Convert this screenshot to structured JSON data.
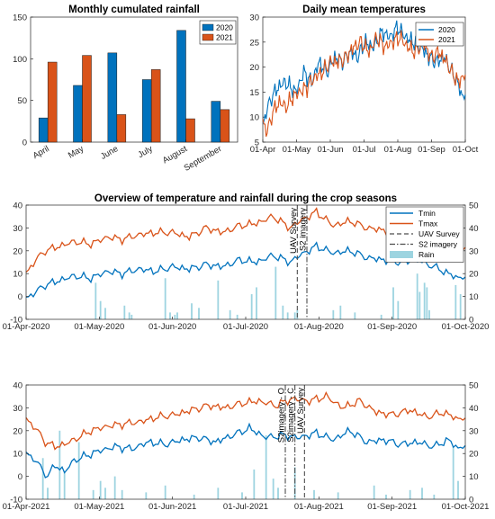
{
  "colors": {
    "c2020": "#0072BD",
    "c2021": "#D95319",
    "tmin": "#0072BD",
    "tmax": "#D95319",
    "rain": "#9DD4E0",
    "axis": "#262626"
  },
  "chart_data": [
    {
      "id": "rainfall",
      "type": "bar",
      "title": "Monthly cumulated rainfall",
      "categories": [
        "April",
        "May",
        "June",
        "July",
        "August",
        "September"
      ],
      "series": [
        {
          "name": "2020",
          "values": [
            29,
            68,
            107,
            75,
            134,
            49
          ]
        },
        {
          "name": "2021",
          "values": [
            96,
            104,
            33,
            87,
            28,
            39
          ]
        }
      ],
      "ylim": [
        0,
        150
      ],
      "yticks": [
        0,
        50,
        100,
        150
      ],
      "legend": "top-right"
    },
    {
      "id": "dailytemp",
      "type": "line",
      "title": "Daily mean temperatures",
      "xticks": [
        "01-Apr",
        "01-May",
        "01-Jun",
        "01-Jul",
        "01-Aug",
        "01-Sep",
        "01-Oct"
      ],
      "ylim": [
        5,
        30
      ],
      "yticks": [
        5,
        10,
        15,
        20,
        25,
        30
      ],
      "legend": "top-right",
      "series": [
        {
          "name": "2020",
          "anchors": [
            [
              0,
              8
            ],
            [
              3,
              11
            ],
            [
              8,
              14
            ],
            [
              14,
              16
            ],
            [
              20,
              17
            ],
            [
              25,
              16
            ],
            [
              30,
              15
            ],
            [
              37,
              19
            ],
            [
              44,
              17
            ],
            [
              51,
              21
            ],
            [
              58,
              19
            ],
            [
              65,
              22
            ],
            [
              72,
              21
            ],
            [
              79,
              23
            ],
            [
              86,
              22
            ],
            [
              92,
              25
            ],
            [
              100,
              24
            ],
            [
              108,
              27
            ],
            [
              115,
              26
            ],
            [
              122,
              28
            ],
            [
              129,
              26
            ],
            [
              136,
              25
            ],
            [
              143,
              24
            ],
            [
              150,
              22
            ],
            [
              157,
              21
            ],
            [
              164,
              22
            ],
            [
              171,
              19
            ],
            [
              176,
              17
            ],
            [
              180,
              14
            ],
            [
              183,
              15
            ]
          ]
        },
        {
          "name": "2021",
          "anchors": [
            [
              0,
              9
            ],
            [
              4,
              7
            ],
            [
              9,
              11
            ],
            [
              15,
              13
            ],
            [
              21,
              12
            ],
            [
              27,
              14
            ],
            [
              33,
              15
            ],
            [
              40,
              16
            ],
            [
              47,
              18
            ],
            [
              54,
              19
            ],
            [
              61,
              21
            ],
            [
              68,
              21
            ],
            [
              75,
              22
            ],
            [
              82,
              24
            ],
            [
              89,
              25
            ],
            [
              96,
              23
            ],
            [
              103,
              26
            ],
            [
              110,
              24
            ],
            [
              117,
              25
            ],
            [
              124,
              26
            ],
            [
              131,
              24
            ],
            [
              138,
              23
            ],
            [
              145,
              25
            ],
            [
              152,
              22
            ],
            [
              159,
              23
            ],
            [
              166,
              21
            ],
            [
              173,
              18
            ],
            [
              178,
              17
            ],
            [
              183,
              19
            ]
          ]
        }
      ]
    },
    {
      "id": "overview2020",
      "type": "line",
      "title": "Overview of temperature and rainfall during the crop seasons",
      "xticks": [
        "01-Apr-2020",
        "01-May-2020",
        "01-Jun-2020",
        "01-Jul-2020",
        "01-Aug-2020",
        "01-Sep-2020",
        "01-Oct-2020"
      ],
      "ylim": [
        -10,
        40
      ],
      "yticks": [
        -10,
        0,
        10,
        20,
        30,
        40
      ],
      "y2lim": [
        0,
        50
      ],
      "y2ticks": [
        0,
        10,
        20,
        30,
        40,
        50
      ],
      "legend": "top-right",
      "legend_entries": [
        "Tmin",
        "Tmax",
        "UAV Survey",
        "S2 imagery",
        "Rain"
      ],
      "series": [
        {
          "name": "Tmin",
          "anchors": [
            [
              0,
              -1
            ],
            [
              4,
              2
            ],
            [
              8,
              5
            ],
            [
              14,
              7
            ],
            [
              20,
              9
            ],
            [
              27,
              8
            ],
            [
              34,
              11
            ],
            [
              40,
              10
            ],
            [
              47,
              12
            ],
            [
              54,
              11
            ],
            [
              61,
              13
            ],
            [
              68,
              12
            ],
            [
              75,
              14
            ],
            [
              82,
              13
            ],
            [
              89,
              16
            ],
            [
              96,
              15
            ],
            [
              103,
              18
            ],
            [
              110,
              15
            ],
            [
              114,
              18
            ],
            [
              121,
              22
            ],
            [
              128,
              19
            ],
            [
              135,
              20
            ],
            [
              142,
              17
            ],
            [
              149,
              16
            ],
            [
              156,
              15
            ],
            [
              163,
              16
            ],
            [
              170,
              13
            ],
            [
              176,
              10
            ],
            [
              180,
              8
            ],
            [
              183,
              9
            ]
          ]
        },
        {
          "name": "Tmax",
          "anchors": [
            [
              0,
              10
            ],
            [
              4,
              16
            ],
            [
              8,
              20
            ],
            [
              14,
              22
            ],
            [
              20,
              24
            ],
            [
              27,
              23
            ],
            [
              34,
              26
            ],
            [
              40,
              25
            ],
            [
              47,
              27
            ],
            [
              54,
              28
            ],
            [
              61,
              28
            ],
            [
              68,
              26
            ],
            [
              75,
              30
            ],
            [
              82,
              28
            ],
            [
              89,
              31
            ],
            [
              96,
              32
            ],
            [
              103,
              35
            ],
            [
              110,
              30
            ],
            [
              114,
              33
            ],
            [
              121,
              37
            ],
            [
              128,
              31
            ],
            [
              135,
              33
            ],
            [
              142,
              30
            ],
            [
              149,
              29
            ],
            [
              156,
              28
            ],
            [
              163,
              30
            ],
            [
              170,
              27
            ],
            [
              176,
              24
            ],
            [
              180,
              20
            ],
            [
              183,
              22
            ]
          ]
        }
      ],
      "rain": [
        [
          29,
          16
        ],
        [
          31,
          8
        ],
        [
          33,
          5
        ],
        [
          41,
          6
        ],
        [
          43,
          3
        ],
        [
          44,
          2
        ],
        [
          58,
          18
        ],
        [
          60,
          3
        ],
        [
          62,
          2
        ],
        [
          63,
          3
        ],
        [
          69,
          7
        ],
        [
          72,
          5
        ],
        [
          80,
          17
        ],
        [
          85,
          4
        ],
        [
          88,
          2
        ],
        [
          94,
          11
        ],
        [
          96,
          14
        ],
        [
          104,
          23
        ],
        [
          107,
          6
        ],
        [
          109,
          3
        ],
        [
          112,
          3
        ],
        [
          113,
          4
        ],
        [
          128,
          4
        ],
        [
          131,
          6
        ],
        [
          137,
          3
        ],
        [
          148,
          2
        ],
        [
          153,
          14
        ],
        [
          155,
          8
        ],
        [
          163,
          20
        ],
        [
          164,
          12
        ],
        [
          166,
          16
        ],
        [
          167,
          14
        ],
        [
          168,
          4
        ],
        [
          179,
          15
        ],
        [
          181,
          11
        ]
      ],
      "vlines": [
        {
          "name": "UAV Survey",
          "day": 113,
          "style": "dash",
          "label": "UAV Survey"
        },
        {
          "name": "S2 imagery",
          "day": 117,
          "style": "dashdot",
          "label": "S2 imagery"
        }
      ]
    },
    {
      "id": "overview2021",
      "type": "line",
      "xticks": [
        "01-Apr-2021",
        "01-May-2021",
        "01-Jun-2021",
        "01-Jul-2021",
        "01-Aug-2021",
        "01-Sep-2021",
        "01-Oct-2021"
      ],
      "ylim": [
        -10,
        40
      ],
      "yticks": [
        -10,
        0,
        10,
        20,
        30,
        40
      ],
      "y2lim": [
        0,
        50
      ],
      "y2ticks": [
        0,
        10,
        20,
        30,
        40,
        50
      ],
      "series": [
        {
          "name": "Tmin",
          "anchors": [
            [
              0,
              10
            ],
            [
              3,
              8
            ],
            [
              6,
              4
            ],
            [
              9,
              0
            ],
            [
              12,
              5
            ],
            [
              16,
              2
            ],
            [
              20,
              7
            ],
            [
              25,
              9
            ],
            [
              30,
              11
            ],
            [
              37,
              13
            ],
            [
              44,
              12
            ],
            [
              51,
              15
            ],
            [
              58,
              14
            ],
            [
              65,
              16
            ],
            [
              72,
              17
            ],
            [
              79,
              15
            ],
            [
              86,
              18
            ],
            [
              93,
              21
            ],
            [
              100,
              17
            ],
            [
              107,
              18
            ],
            [
              114,
              17
            ],
            [
              121,
              19
            ],
            [
              128,
              16
            ],
            [
              135,
              20
            ],
            [
              142,
              15
            ],
            [
              149,
              16
            ],
            [
              156,
              14
            ],
            [
              163,
              15
            ],
            [
              170,
              13
            ],
            [
              176,
              16
            ],
            [
              180,
              12
            ],
            [
              183,
              14
            ]
          ]
        },
        {
          "name": "Tmax",
          "anchors": [
            [
              0,
              25
            ],
            [
              4,
              21
            ],
            [
              8,
              15
            ],
            [
              12,
              13
            ],
            [
              16,
              14
            ],
            [
              20,
              16
            ],
            [
              27,
              20
            ],
            [
              34,
              22
            ],
            [
              41,
              23
            ],
            [
              48,
              24
            ],
            [
              55,
              26
            ],
            [
              62,
              27
            ],
            [
              69,
              29
            ],
            [
              76,
              31
            ],
            [
              83,
              30
            ],
            [
              90,
              32
            ],
            [
              97,
              33
            ],
            [
              104,
              31
            ],
            [
              111,
              34
            ],
            [
              118,
              33
            ],
            [
              125,
              35
            ],
            [
              132,
              30
            ],
            [
              139,
              33
            ],
            [
              146,
              28
            ],
            [
              153,
              27
            ],
            [
              160,
              29
            ],
            [
              167,
              26
            ],
            [
              174,
              28
            ],
            [
              180,
              25
            ],
            [
              183,
              26
            ]
          ]
        }
      ],
      "rain": [
        [
          7,
          18
        ],
        [
          9,
          5
        ],
        [
          14,
          30
        ],
        [
          16,
          12
        ],
        [
          22,
          25
        ],
        [
          28,
          4
        ],
        [
          31,
          8
        ],
        [
          33,
          5
        ],
        [
          37,
          10
        ],
        [
          40,
          4
        ],
        [
          50,
          3
        ],
        [
          58,
          6
        ],
        [
          70,
          2
        ],
        [
          80,
          5
        ],
        [
          90,
          3
        ],
        [
          95,
          13
        ],
        [
          100,
          28
        ],
        [
          103,
          9
        ],
        [
          105,
          5
        ],
        [
          112,
          14
        ],
        [
          120,
          4
        ],
        [
          130,
          3
        ],
        [
          145,
          6
        ],
        [
          150,
          2
        ],
        [
          160,
          4
        ],
        [
          165,
          5
        ],
        [
          170,
          2
        ],
        [
          178,
          23
        ],
        [
          180,
          8
        ]
      ],
      "vlines": [
        {
          "name": "S2 imagery - O",
          "day": 108,
          "style": "dashdot",
          "label": "S2imagery - O"
        },
        {
          "name": "S2 imagery - C",
          "day": 112,
          "style": "dashdot",
          "label": "S2imagery - C"
        },
        {
          "name": "UAV Survey",
          "day": 116,
          "style": "dash",
          "label": "UAV Survey"
        }
      ]
    }
  ]
}
